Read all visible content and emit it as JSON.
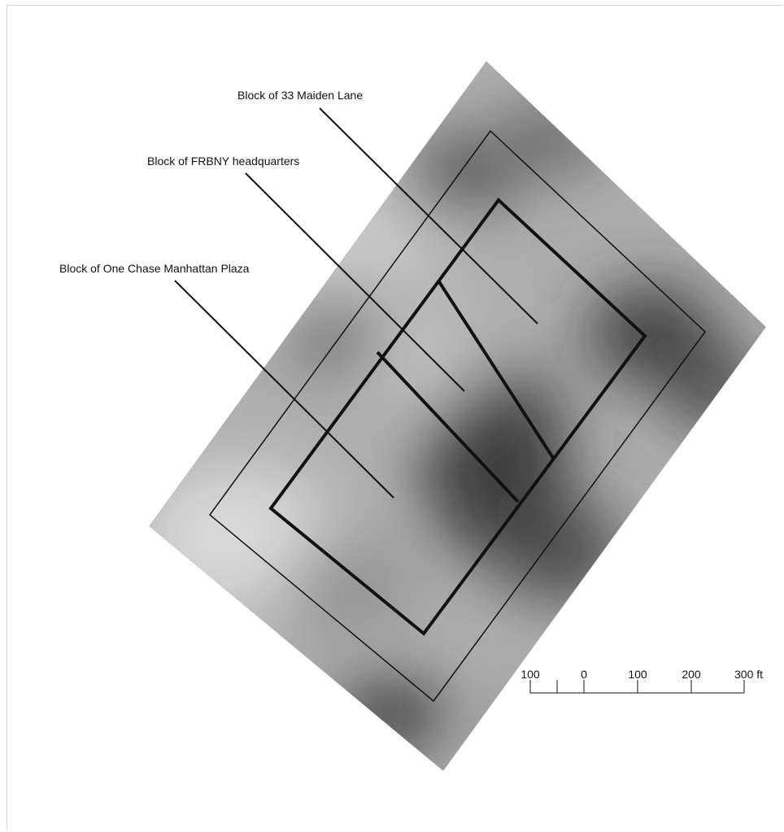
{
  "labels": {
    "maiden_lane": "Block of 33 Maiden Lane",
    "frbny": "Block of FRBNY headquarters",
    "chase": "Block of One Chase Manhattan Plaza"
  },
  "scale_bar": {
    "ticks": [
      "100",
      "0",
      "100",
      "200",
      "300 ft"
    ]
  },
  "colors": {
    "background": "#ffffff",
    "ink": "#111111"
  }
}
